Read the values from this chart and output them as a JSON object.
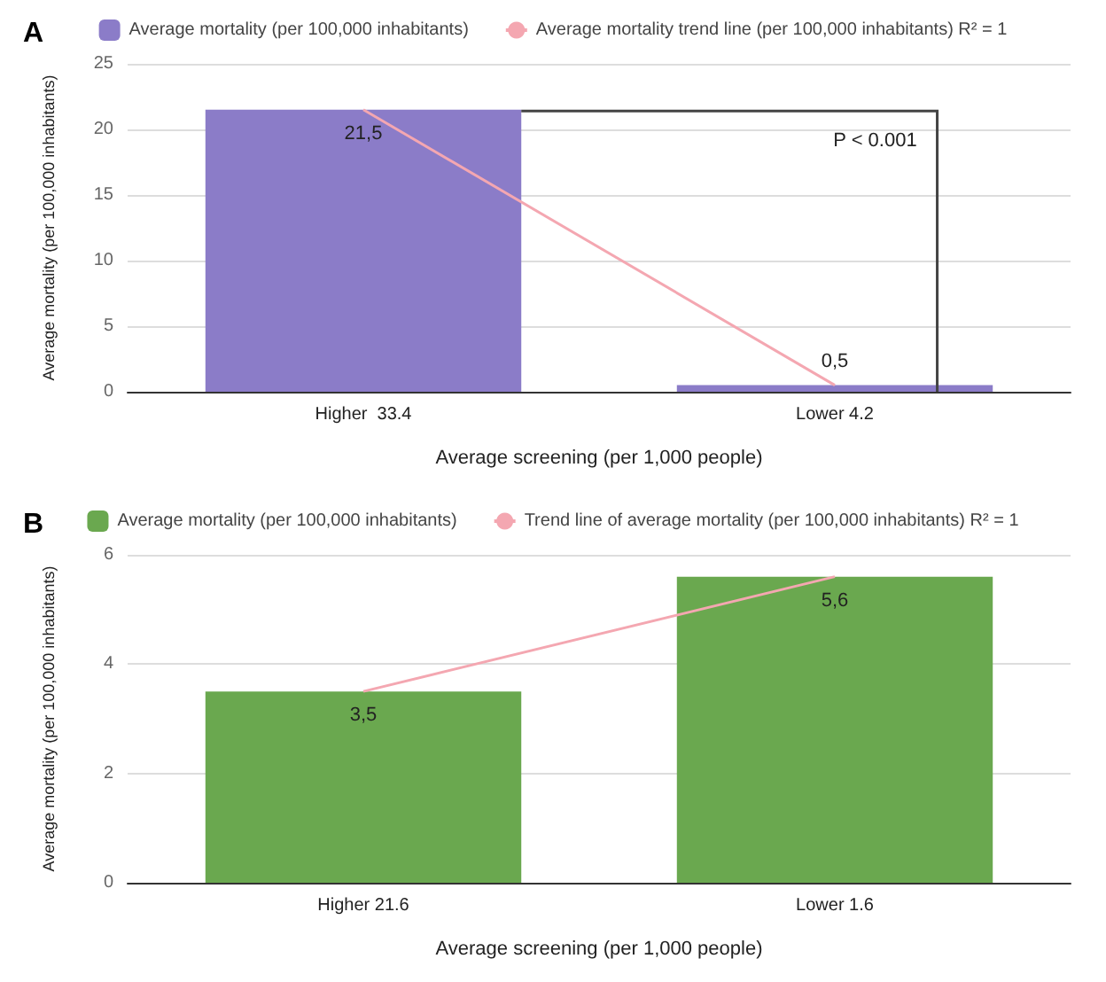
{
  "chart_data": [
    {
      "type": "bar",
      "title": "A",
      "xlabel": "Average screening (per 1,000 people)",
      "ylabel": "Average mortality (per 100,000 inhabitants)",
      "categories": [
        "Higher  33.4",
        "Lower 4.2"
      ],
      "series": [
        {
          "name": "Average mortality (per 100,000 inhabitants)",
          "color": "#8b7cc8",
          "values": [
            21.5,
            0.5
          ],
          "value_labels": [
            "21,5",
            "0,5"
          ]
        },
        {
          "type": "line",
          "name": "Average mortality trend line (per 100,000 inhabitants) R² = 1",
          "color": "#f4a7b1",
          "values": [
            21.5,
            0.5
          ],
          "marker": "none"
        }
      ],
      "ylim": [
        0,
        25
      ],
      "yticks": [
        0,
        5,
        10,
        15,
        20,
        25
      ],
      "grid": "y",
      "legend": "top",
      "annotations": [
        "P < 0.001"
      ]
    },
    {
      "type": "bar",
      "title": "B",
      "xlabel": "Average screening (per 1,000 people)",
      "ylabel": "Average mortality (per 100,000 inhabitants)",
      "categories": [
        "Higher 21.6",
        "Lower 1.6"
      ],
      "series": [
        {
          "name": "Average mortality (per 100,000 inhabitants)",
          "color": "#6aa84f",
          "values": [
            3.5,
            5.6
          ],
          "value_labels": [
            "3,5",
            "5,6"
          ]
        },
        {
          "type": "line",
          "name": "Trend line of average mortality (per 100,000 inhabitants) R² = 1",
          "color": "#f4a7b1",
          "values": [
            3.5,
            5.6
          ],
          "marker": "none"
        }
      ],
      "ylim": [
        0,
        6
      ],
      "yticks": [
        0,
        2,
        4,
        6
      ],
      "grid": "y",
      "legend": "top"
    }
  ]
}
